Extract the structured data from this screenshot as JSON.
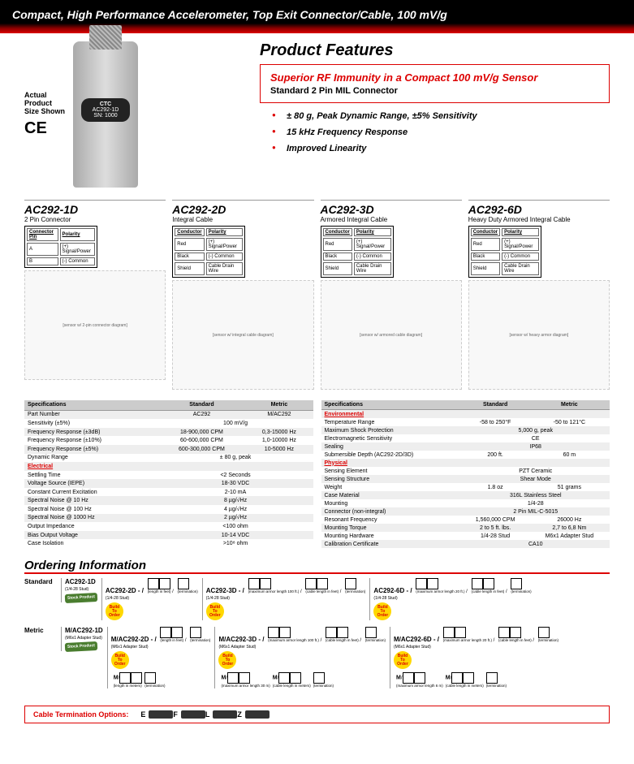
{
  "header": {
    "title": "Compact, High Performance Accelerometer, Top Exit Connector/Cable, 100 mV/g"
  },
  "product_image": {
    "size_label": "Actual\nProduct\nSize Shown",
    "ce": "CE",
    "brand": "CTC",
    "model_on_sensor": "AC292-1D",
    "sn": "SN: 1000"
  },
  "features": {
    "title": "Product Features",
    "highlight_line1": "Superior RF Immunity in a Compact 100 mV/g Sensor",
    "highlight_line2": "Standard 2 Pin MIL Connector",
    "bullets": [
      "± 80 g, Peak Dynamic Range, ±5% Sensitivity",
      "15 kHz Frequency Response",
      "Improved Linearity"
    ]
  },
  "variants": [
    {
      "code": "AC292-1D",
      "sub": "2 Pin Connector",
      "pin_h1": "Connector Pin",
      "pin_h2": "Polarity",
      "rows": [
        [
          "A",
          "(+) Signal/Power"
        ],
        [
          "B",
          "(-) Common"
        ]
      ],
      "diag": "[sensor w/ 2-pin connector diagram]"
    },
    {
      "code": "AC292-2D",
      "sub": "Integral Cable",
      "pin_h1": "Conductor",
      "pin_h2": "Polarity",
      "rows": [
        [
          "Red",
          "(+) Signal/Power"
        ],
        [
          "Black",
          "(-) Common"
        ],
        [
          "Shield",
          "Cable Drain Wire"
        ]
      ],
      "diag": "[sensor w/ integral cable diagram]"
    },
    {
      "code": "AC292-3D",
      "sub": "Armored Integral Cable",
      "pin_h1": "Conductor",
      "pin_h2": "Polarity",
      "rows": [
        [
          "Red",
          "(+) Signal/Power"
        ],
        [
          "Black",
          "(-) Common"
        ],
        [
          "Shield",
          "Cable Drain Wire"
        ]
      ],
      "diag": "[sensor w/ armored cable diagram]"
    },
    {
      "code": "AC292-6D",
      "sub": "Heavy Duty Armored Integral Cable",
      "pin_h1": "Conductor",
      "pin_h2": "Polarity",
      "rows": [
        [
          "Red",
          "(+) Signal/Power"
        ],
        [
          "Black",
          "(-) Common"
        ],
        [
          "Shield",
          "Cable Drain Wire"
        ]
      ],
      "diag": "[sensor w/ heavy armor diagram]"
    }
  ],
  "specs_left": {
    "headers": [
      "Specifications",
      "Standard",
      "Metric"
    ],
    "rows": [
      {
        "l": "Part Number",
        "s": "AC292",
        "m": "M/AC292"
      },
      {
        "l": "Sensitivity (±5%)",
        "s": "",
        "m": "",
        "full": "100 mV/g"
      },
      {
        "l": "Frequency Response (±3dB)",
        "s": "18-900,000 CPM",
        "m": "0,3-15000 Hz"
      },
      {
        "l": "Frequency Response (±10%)",
        "s": "60-600,000 CPM",
        "m": "1,0-10000 Hz"
      },
      {
        "l": "Frequency Response (±5%)",
        "s": "600-300,000 CPM",
        "m": "10-5000 Hz"
      },
      {
        "l": "Dynamic Range",
        "s": "",
        "m": "",
        "full": "± 80 g, peak"
      },
      {
        "hdr": "Electrical"
      },
      {
        "l": "Settling Time",
        "s": "",
        "m": "",
        "full": "<2 Seconds"
      },
      {
        "l": "Voltage Source (IEPE)",
        "s": "",
        "m": "",
        "full": "18-30 VDC"
      },
      {
        "l": "Constant Current Excitation",
        "s": "",
        "m": "",
        "full": "2-10 mA"
      },
      {
        "l": "Spectral Noise @ 10 Hz",
        "s": "",
        "m": "",
        "full": "8 µg/√Hz"
      },
      {
        "l": "Spectral Noise @ 100 Hz",
        "s": "",
        "m": "",
        "full": "4 µg/√Hz"
      },
      {
        "l": "Spectral Noise @ 1000 Hz",
        "s": "",
        "m": "",
        "full": "2 µg/√Hz"
      },
      {
        "l": "Output Impedance",
        "s": "",
        "m": "",
        "full": "<100 ohm"
      },
      {
        "l": "Bias Output Voltage",
        "s": "",
        "m": "",
        "full": "10-14 VDC"
      },
      {
        "l": "Case Isolation",
        "s": "",
        "m": "",
        "full": ">10⁸ ohm"
      }
    ]
  },
  "specs_right": {
    "headers": [
      "Specifications",
      "Standard",
      "Metric"
    ],
    "rows": [
      {
        "hdr": "Environmental"
      },
      {
        "l": "Temperature Range",
        "s": "-58 to 250°F",
        "m": "-50 to 121°C"
      },
      {
        "l": "Maximum Shock Protection",
        "s": "",
        "m": "",
        "full": "5,000 g, peak"
      },
      {
        "l": "Electromagnetic Sensitivity",
        "s": "",
        "m": "",
        "full": "CE"
      },
      {
        "l": "Sealing",
        "s": "",
        "m": "",
        "full": "IP68"
      },
      {
        "l": "Submersible Depth (AC292-2D/3D)",
        "s": "200 ft.",
        "m": "60 m"
      },
      {
        "hdr": "Physical"
      },
      {
        "l": "Sensing Element",
        "s": "",
        "m": "",
        "full": "PZT Ceramic"
      },
      {
        "l": "Sensing Structure",
        "s": "",
        "m": "",
        "full": "Shear Mode"
      },
      {
        "l": "Weight",
        "s": "1.8 oz",
        "m": "51 grams"
      },
      {
        "l": "Case Material",
        "s": "",
        "m": "",
        "full": "316L Stainless Steel"
      },
      {
        "l": "Mounting",
        "s": "",
        "m": "",
        "full": "1/4-28"
      },
      {
        "l": "Connector (non-integral)",
        "s": "",
        "m": "",
        "full": "2 Pin MIL-C-5015"
      },
      {
        "l": "Resonant Frequency",
        "s": "1,560,000 CPM",
        "m": "26000 Hz"
      },
      {
        "l": "Mounting Torque",
        "s": "2 to 5 ft. lbs.",
        "m": "2,7 to 6,8 Nm"
      },
      {
        "l": "Mounting Hardware",
        "s": "1/4-28 Stud",
        "m": "M6x1 Adapter Stud"
      },
      {
        "l": "Calibration Certificate",
        "s": "",
        "m": "",
        "full": "CA10"
      }
    ]
  },
  "ordering": {
    "title": "Ordering Information",
    "std_label": "Standard",
    "met_label": "Metric",
    "stock": "Stock\nProduct",
    "build": "Build\nTo\nOrder",
    "std_rows": [
      {
        "code": "AC292-1D",
        "sub": "(1/4-28 Stud)",
        "badge": "stock"
      },
      {
        "code": "AC292-2D - /",
        "sub": "(1/4-28 Stud)",
        "badge": "build",
        "extras": [
          {
            "t": "(length in feet)",
            "b": 2
          },
          {
            "t": "(termination)",
            "b": 1
          }
        ]
      },
      {
        "code": "AC292-3D - /",
        "sub": "(1/4-28 Stud)",
        "badge": "build",
        "extras": [
          {
            "t": "(maximum armor length 100 ft.)",
            "b": 2
          },
          {
            "t": "(cable length in feet)",
            "b": 2
          },
          {
            "t": "(termination)",
            "b": 1
          }
        ]
      },
      {
        "code": "AC292-6D - /",
        "sub": "(1/4-28 Stud)",
        "badge": "build",
        "extras": [
          {
            "t": "(maximum armor length 20 ft.)",
            "b": 2
          },
          {
            "t": "(cable length in feet)",
            "b": 2
          },
          {
            "t": "(termination)",
            "b": 1
          }
        ]
      }
    ],
    "met_rows": [
      {
        "code": "M/AC292-1D",
        "sub": "(M6x1 Adapter Stud)",
        "badge": "stock"
      },
      {
        "code": "M/AC292-2D - /",
        "sub": "(M6x1 Adapter Stud)",
        "badge": "build",
        "extras": [
          {
            "t": "(length in feet)",
            "b": 2
          },
          {
            "t": "(termination)",
            "b": 1
          }
        ],
        "m_extras": [
          {
            "t": "(length in meters)",
            "b": 2,
            "pre": "M"
          },
          {
            "t": "(termination)",
            "b": 1
          }
        ]
      },
      {
        "code": "M/AC292-3D - /",
        "sub": "(M6x1 Adapter Stud)",
        "badge": "build",
        "extras": [
          {
            "t": "(maximum armor length 100 ft.)",
            "b": 2
          },
          {
            "t": "(cable length in feet)",
            "b": 2
          },
          {
            "t": "(termination)",
            "b": 1
          }
        ],
        "m_extras": [
          {
            "t": "(maximum armor length 30 m)",
            "b": 2,
            "pre": "M"
          },
          {
            "t": "(cable length in meters)",
            "b": 2,
            "pre": "M"
          },
          {
            "t": "(termination)",
            "b": 1
          }
        ]
      },
      {
        "code": "M/AC292-6D - /",
        "sub": "(M6x1 Adapter Stud)",
        "badge": "build",
        "extras": [
          {
            "t": "(maximum armor length 20 ft.)",
            "b": 2
          },
          {
            "t": "(cable length in feet)",
            "b": 2
          },
          {
            "t": "(termination)",
            "b": 1
          }
        ],
        "m_extras": [
          {
            "t": "(maximum armor length 6 m)",
            "b": 2,
            "pre": "M"
          },
          {
            "t": "(cable length in meters)",
            "b": 2,
            "pre": "M"
          },
          {
            "t": "(termination)",
            "b": 1
          }
        ]
      }
    ]
  },
  "cable_term": {
    "label": "Cable Termination Options:",
    "opts": [
      "E",
      "F",
      "L",
      "Z"
    ]
  }
}
